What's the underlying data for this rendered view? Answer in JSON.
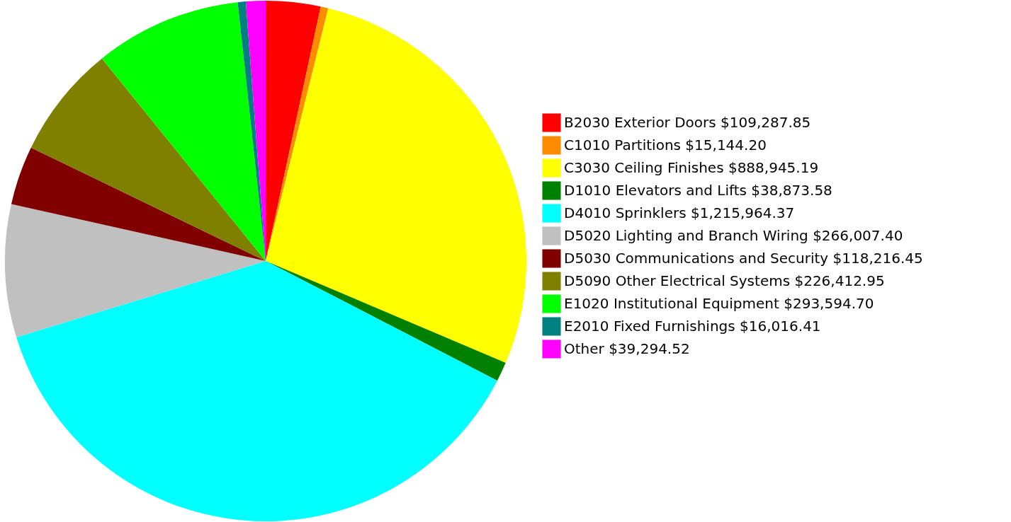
{
  "chart_data": {
    "type": "pie",
    "categories": [
      "B2030 Exterior Doors",
      "C1010 Partitions",
      "C3030 Ceiling Finishes",
      "D1010 Elevators and Lifts",
      "D4010 Sprinklers",
      "D5020 Lighting and Branch Wiring",
      "D5030 Communications and Security",
      "D5090 Other Electrical Systems",
      "E1020 Institutional Equipment",
      "E2010 Fixed Furnishings",
      "Other"
    ],
    "values": [
      109287.85,
      15144.2,
      888945.19,
      38873.58,
      1215964.37,
      266007.4,
      118216.45,
      226412.95,
      293594.7,
      16016.41,
      39294.52
    ],
    "value_labels": [
      "$109,287.85",
      "$15,144.20",
      "$888,945.19",
      "$38,873.58",
      "$1,215,964.37",
      "$266,007.40",
      "$118,216.45",
      "$226,412.95",
      "$293,594.70",
      "$16,016.41",
      "$39,294.52"
    ],
    "colors": [
      "#ff0000",
      "#ff8c00",
      "#ffff00",
      "#008000",
      "#00ffff",
      "#c0c0c0",
      "#800000",
      "#808000",
      "#00ff00",
      "#008080",
      "#ff00ff"
    ],
    "legend": "right"
  }
}
